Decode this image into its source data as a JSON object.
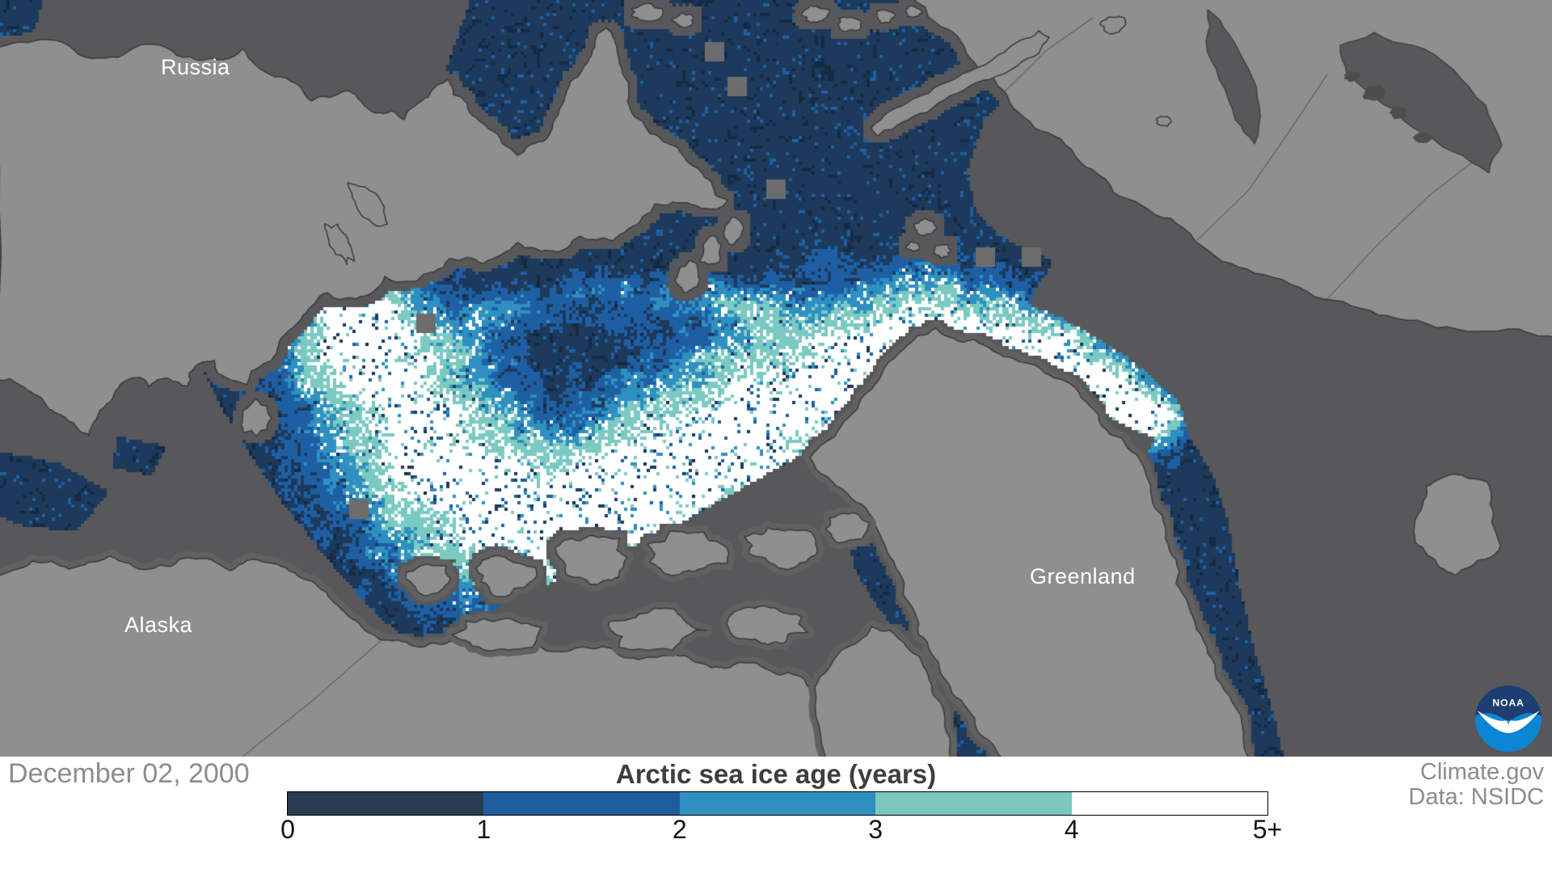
{
  "map": {
    "labels": {
      "russia": "Russia",
      "alaska": "Alaska",
      "greenland": "Greenland"
    },
    "logo_text": "NOAA",
    "colors": {
      "ocean": "#58585a",
      "land": "#8f8f8f",
      "land_rim": "#616161",
      "coast": "#3b3b3b",
      "lake": "#4d4d4d",
      "border_line": "#4a4a4a",
      "gap_square": "#6c6c6c",
      "ice": [
        "#1d3a5c",
        "#1e5fa4",
        "#2e90c0",
        "#7bcac2",
        "#ffffff"
      ],
      "ice_dark": "#152b44",
      "logo_top": "#1c3e70",
      "logo_bottom": "#0b86d4"
    }
  },
  "footer": {
    "date": "December 02, 2000",
    "title": "Arctic sea ice age (years)",
    "credit_line1": "Climate.gov",
    "credit_line2": "Data: NSIDC",
    "legend": {
      "tick_labels": [
        "0",
        "1",
        "2",
        "3",
        "4",
        "5+"
      ],
      "segment_colors": [
        "#2b3c51",
        "#1f5c9d",
        "#2f90c0",
        "#7ac8c0",
        "#ffffff"
      ]
    }
  }
}
